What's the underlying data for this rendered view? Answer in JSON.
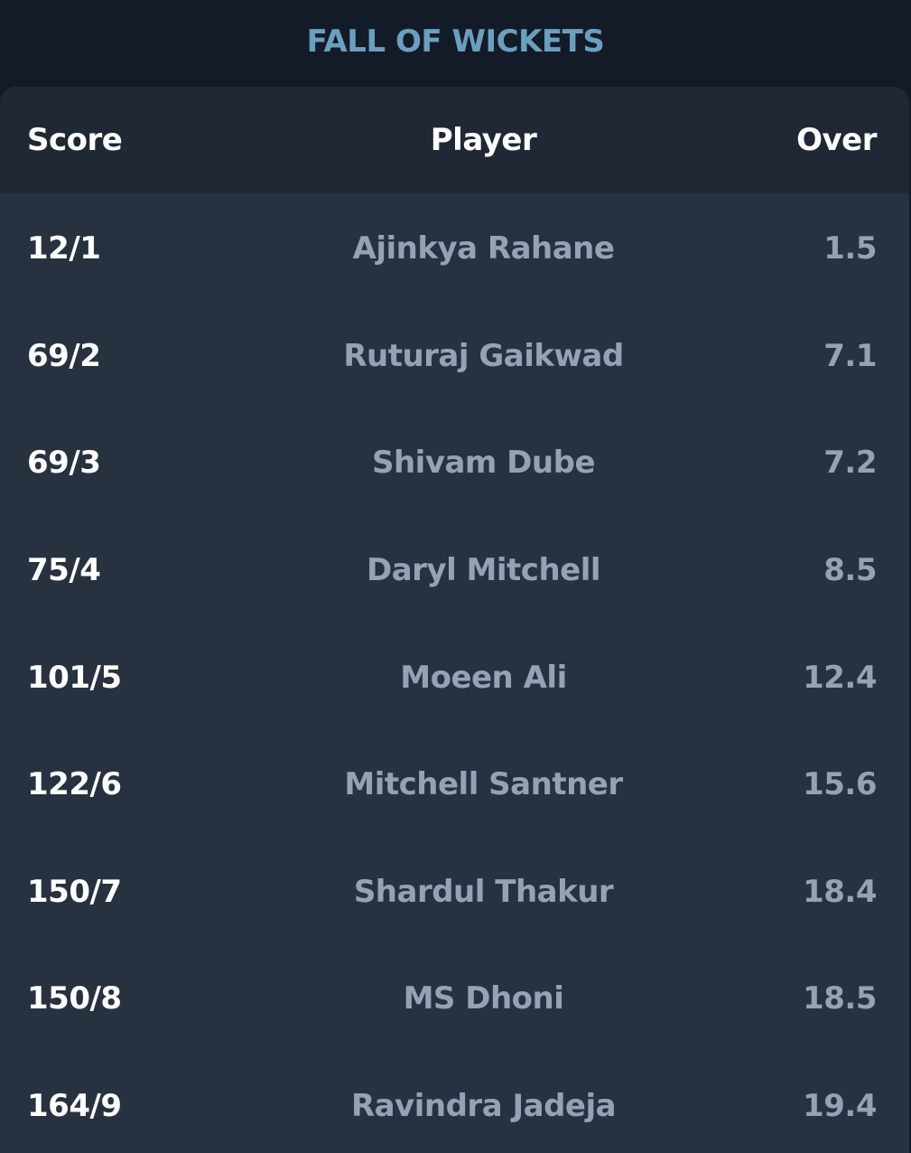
{
  "header": {
    "title": "FALL OF WICKETS"
  },
  "table": {
    "columns": {
      "score": "Score",
      "player": "Player",
      "over": "Over"
    },
    "rows": [
      {
        "score": "12/1",
        "player": "Ajinkya Rahane",
        "over": "1.5"
      },
      {
        "score": "69/2",
        "player": "Ruturaj Gaikwad",
        "over": "7.1"
      },
      {
        "score": "69/3",
        "player": "Shivam Dube",
        "over": "7.2"
      },
      {
        "score": "75/4",
        "player": "Daryl Mitchell",
        "over": "8.5"
      },
      {
        "score": "101/5",
        "player": "Moeen Ali",
        "over": "12.4"
      },
      {
        "score": "122/6",
        "player": "Mitchell Santner",
        "over": "15.6"
      },
      {
        "score": "150/7",
        "player": "Shardul Thakur",
        "over": "18.4"
      },
      {
        "score": "150/8",
        "player": "MS Dhoni",
        "over": "18.5"
      },
      {
        "score": "164/9",
        "player": "Ravindra Jadeja",
        "over": "19.4"
      }
    ]
  },
  "colors": {
    "background": "#141b28",
    "card": "#283140",
    "header_row": "#202836",
    "title": "#6b9fbd",
    "muted_text": "#95a1b5"
  }
}
